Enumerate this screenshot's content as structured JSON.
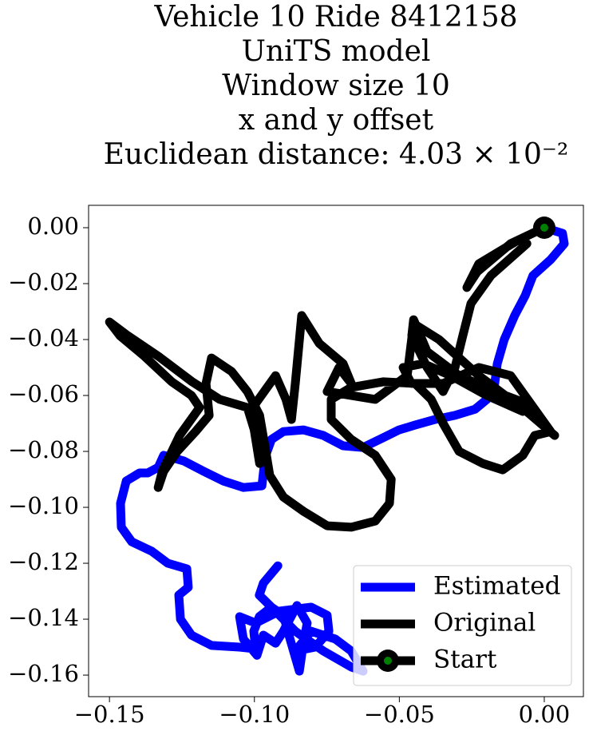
{
  "chart_data": {
    "type": "line",
    "title": [
      "Vehicle 10 Ride 8412158",
      "UniTS model",
      "Window size 10",
      "x and y offset",
      "Euclidean distance: 4.03 × 10⁻²"
    ],
    "xlim": [
      -0.1572,
      0.0135
    ],
    "ylim": [
      -0.1677,
      0.008
    ],
    "xticks": [
      {
        "value": -0.15,
        "label": "−0.15"
      },
      {
        "value": -0.1,
        "label": "−0.10"
      },
      {
        "value": -0.05,
        "label": "−0.05"
      },
      {
        "value": 0,
        "label": "0.00"
      }
    ],
    "yticks": [
      {
        "value": 0,
        "label": "0.00"
      },
      {
        "value": -0.02,
        "label": "−0.02"
      },
      {
        "value": -0.04,
        "label": "−0.04"
      },
      {
        "value": -0.06,
        "label": "−0.06"
      },
      {
        "value": -0.08,
        "label": "−0.08"
      },
      {
        "value": -0.1,
        "label": "−0.10"
      },
      {
        "value": -0.12,
        "label": "−0.12"
      },
      {
        "value": -0.14,
        "label": "−0.14"
      },
      {
        "value": -0.16,
        "label": "−0.16"
      }
    ],
    "legend": "lower right",
    "series": [
      {
        "name": "Estimated",
        "color": "#0000ff",
        "x": [
          0,
          0.0063,
          0.0069,
          0.0022,
          -0.0039,
          -0.0066,
          -0.0102,
          -0.0138,
          -0.0162,
          -0.0171,
          -0.0198,
          -0.0239,
          -0.0308,
          -0.0377,
          -0.0446,
          -0.0501,
          -0.0556,
          -0.0625,
          -0.0694,
          -0.0762,
          -0.0831,
          -0.09,
          -0.0941,
          -0.0963,
          -0.0974,
          -0.1038,
          -0.1107,
          -0.1175,
          -0.1244,
          -0.1313,
          -0.1332,
          -0.1368,
          -0.1396,
          -0.1442,
          -0.1462,
          -0.1459,
          -0.1423,
          -0.1354,
          -0.1299,
          -0.1233,
          -0.1228,
          -0.1261,
          -0.1255,
          -0.1217,
          -0.1148,
          -0.1051,
          -0.0996,
          -0.1002,
          -0.0983,
          -0.0941,
          -0.09,
          -0.0881,
          -0.0845,
          -0.0831,
          -0.0818,
          -0.0853,
          -0.09,
          -0.0927,
          -0.0969,
          -0.0991,
          -0.1038,
          -0.1051,
          -0.0996,
          -0.0914,
          -0.0804,
          -0.0749,
          -0.0743,
          -0.079,
          -0.0859,
          -0.0804,
          -0.0721,
          -0.0666,
          -0.0625,
          -0.0666,
          -0.0762,
          -0.0859,
          -0.0941,
          -0.0983,
          -0.0969,
          -0.0919
        ],
        "y": [
          0,
          -0.002,
          -0.0057,
          -0.0114,
          -0.0171,
          -0.0243,
          -0.0314,
          -0.04,
          -0.0486,
          -0.0557,
          -0.0614,
          -0.0649,
          -0.0671,
          -0.0686,
          -0.0706,
          -0.0723,
          -0.0751,
          -0.0786,
          -0.078,
          -0.0743,
          -0.0723,
          -0.0729,
          -0.0757,
          -0.082,
          -0.0923,
          -0.0929,
          -0.0906,
          -0.0871,
          -0.0834,
          -0.0814,
          -0.0857,
          -0.0877,
          -0.0877,
          -0.0906,
          -0.0986,
          -0.1071,
          -0.1123,
          -0.1157,
          -0.12,
          -0.122,
          -0.1286,
          -0.1314,
          -0.14,
          -0.1457,
          -0.1494,
          -0.15,
          -0.1506,
          -0.1443,
          -0.1391,
          -0.1357,
          -0.1386,
          -0.1457,
          -0.1586,
          -0.1486,
          -0.1414,
          -0.1351,
          -0.1443,
          -0.1486,
          -0.1457,
          -0.1529,
          -0.1471,
          -0.1391,
          -0.1414,
          -0.1371,
          -0.1357,
          -0.1386,
          -0.1443,
          -0.15,
          -0.1514,
          -0.1443,
          -0.1471,
          -0.1514,
          -0.1586,
          -0.1571,
          -0.1514,
          -0.1443,
          -0.1357,
          -0.1314,
          -0.1271,
          -0.1209
        ]
      },
      {
        "name": "Original",
        "color": "#000000",
        "x": [
          0,
          -0.0116,
          -0.0231,
          -0.0267,
          -0.0226,
          -0.0088,
          -0.006,
          -0.0184,
          -0.0253,
          -0.0281,
          -0.0308,
          -0.0349,
          -0.0404,
          -0.0457,
          -0.0451,
          -0.0404,
          -0.0294,
          -0.017,
          -0.0061,
          -0.0074,
          -0.0198,
          -0.0322,
          -0.0418,
          -0.0487,
          -0.0459,
          -0.0349,
          -0.0226,
          -0.0116,
          0.0022,
          -0.0033,
          -0.0074,
          -0.0143,
          -0.0212,
          -0.0294,
          -0.0349,
          -0.039,
          -0.0446,
          -0.0556,
          -0.0666,
          -0.0735,
          -0.0735,
          -0.0666,
          -0.0583,
          -0.0528,
          -0.0534,
          -0.0583,
          -0.0666,
          -0.0749,
          -0.0831,
          -0.09,
          -0.0947,
          -0.0963,
          -0.0982,
          -0.1024,
          -0.1079,
          -0.1148,
          -0.1167,
          -0.1156,
          -0.1203,
          -0.1266,
          -0.1313,
          -0.1332,
          -0.1318,
          -0.1258,
          -0.1189,
          -0.1217,
          -0.1285,
          -0.1382,
          -0.1464,
          -0.15,
          -0.1437,
          -0.1327,
          -0.1217,
          -0.112,
          -0.1024,
          -0.0969,
          -0.0982,
          -0.1002,
          -0.0996,
          -0.0927,
          -0.0891,
          -0.0872,
          -0.0859,
          -0.0837,
          -0.0776,
          -0.0694,
          -0.0666,
          -0.0708,
          -0.0749,
          -0.0583,
          -0.0473,
          -0.0451,
          -0.0363,
          -0.0226,
          -0.0061,
          0.0036
        ],
        "y": [
          0,
          -0.0057,
          -0.0157,
          -0.0214,
          -0.0129,
          -0.0043,
          -0.0057,
          -0.0171,
          -0.0271,
          -0.0386,
          -0.05,
          -0.0586,
          -0.05,
          -0.0386,
          -0.0329,
          -0.0443,
          -0.0529,
          -0.0586,
          -0.0629,
          -0.0657,
          -0.06,
          -0.0529,
          -0.0486,
          -0.05,
          -0.0557,
          -0.0557,
          -0.05,
          -0.0529,
          -0.0729,
          -0.0743,
          -0.0814,
          -0.0866,
          -0.0843,
          -0.08,
          -0.07,
          -0.0614,
          -0.0557,
          -0.0551,
          -0.0571,
          -0.0614,
          -0.0686,
          -0.0757,
          -0.0814,
          -0.09,
          -0.0986,
          -0.1049,
          -0.1071,
          -0.1066,
          -0.1014,
          -0.0963,
          -0.0886,
          -0.0786,
          -0.0671,
          -0.0586,
          -0.0514,
          -0.0466,
          -0.0557,
          -0.0671,
          -0.0729,
          -0.08,
          -0.0871,
          -0.0929,
          -0.0871,
          -0.0743,
          -0.0643,
          -0.06,
          -0.0551,
          -0.0457,
          -0.0386,
          -0.0337,
          -0.0386,
          -0.0463,
          -0.0549,
          -0.0614,
          -0.0643,
          -0.0829,
          -0.0843,
          -0.0714,
          -0.0629,
          -0.0529,
          -0.0614,
          -0.0686,
          -0.0557,
          -0.0314,
          -0.0414,
          -0.0486,
          -0.0557,
          -0.05,
          -0.0586,
          -0.0614,
          -0.0529,
          -0.0343,
          -0.04,
          -0.0529,
          -0.0657,
          -0.0743
        ]
      },
      {
        "name": "Start",
        "color": "#000000",
        "marker_color": "#008000",
        "marker": true,
        "x": [
          0
        ],
        "y": [
          0
        ]
      }
    ]
  }
}
